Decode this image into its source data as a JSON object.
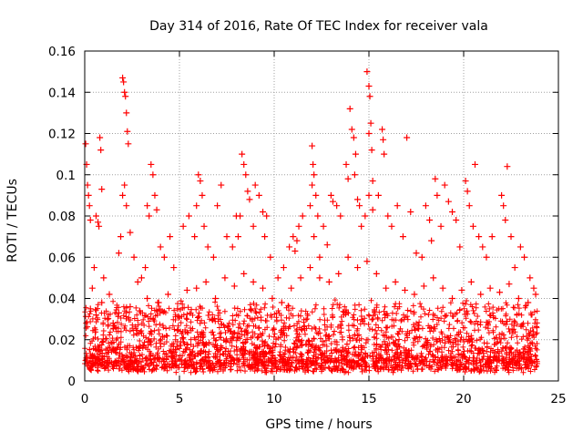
{
  "chart_data": {
    "type": "scatter",
    "title": "Day 314 of 2016, Rate Of TEC Index for receiver vala",
    "xlabel": "GPS time / hours",
    "ylabel": "ROTI / TECUs",
    "xlim": [
      0,
      25
    ],
    "ylim": [
      0,
      0.16
    ],
    "xticks": [
      0,
      5,
      10,
      15,
      20,
      25
    ],
    "yticks": [
      0,
      0.02,
      0.04,
      0.06,
      0.08,
      0.1,
      0.12,
      0.14,
      0.16
    ],
    "xtick_labels": [
      "0",
      "5",
      "10",
      "15",
      "20",
      "25"
    ],
    "ytick_labels": [
      "0",
      "0.02",
      "0.04",
      "0.06",
      "0.08",
      "0.1",
      "0.12",
      "0.14",
      "0.16"
    ],
    "grid": true,
    "marker": "+",
    "series": [
      {
        "name": "ROTI",
        "color": "#ff0000",
        "points": [
          [
            0.05,
            0.115
          ],
          [
            0.1,
            0.105
          ],
          [
            0.15,
            0.095
          ],
          [
            0.2,
            0.09
          ],
          [
            0.25,
            0.085
          ],
          [
            0.3,
            0.078
          ],
          [
            0.6,
            0.08
          ],
          [
            0.7,
            0.077
          ],
          [
            0.75,
            0.075
          ],
          [
            0.8,
            0.118
          ],
          [
            0.85,
            0.112
          ],
          [
            0.9,
            0.093
          ],
          [
            0.5,
            0.055
          ],
          [
            0.4,
            0.045
          ],
          [
            1.0,
            0.05
          ],
          [
            1.3,
            0.042
          ],
          [
            2.0,
            0.147
          ],
          [
            2.05,
            0.145
          ],
          [
            2.1,
            0.14
          ],
          [
            2.15,
            0.138
          ],
          [
            2.2,
            0.13
          ],
          [
            2.25,
            0.121
          ],
          [
            2.3,
            0.115
          ],
          [
            2.1,
            0.095
          ],
          [
            2.0,
            0.09
          ],
          [
            2.2,
            0.085
          ],
          [
            1.9,
            0.07
          ],
          [
            1.8,
            0.062
          ],
          [
            2.4,
            0.072
          ],
          [
            2.6,
            0.06
          ],
          [
            2.8,
            0.048
          ],
          [
            3.3,
            0.085
          ],
          [
            3.4,
            0.08
          ],
          [
            3.5,
            0.105
          ],
          [
            3.6,
            0.1
          ],
          [
            3.7,
            0.09
          ],
          [
            3.8,
            0.083
          ],
          [
            3.2,
            0.055
          ],
          [
            3.0,
            0.05
          ],
          [
            4.0,
            0.065
          ],
          [
            4.2,
            0.06
          ],
          [
            4.5,
            0.07
          ],
          [
            4.7,
            0.055
          ],
          [
            5.2,
            0.075
          ],
          [
            5.5,
            0.08
          ],
          [
            5.8,
            0.07
          ],
          [
            5.9,
            0.085
          ],
          [
            6.0,
            0.1
          ],
          [
            6.1,
            0.097
          ],
          [
            6.3,
            0.075
          ],
          [
            6.5,
            0.065
          ],
          [
            6.8,
            0.06
          ],
          [
            6.2,
            0.09
          ],
          [
            7.2,
            0.095
          ],
          [
            7.0,
            0.085
          ],
          [
            7.5,
            0.07
          ],
          [
            7.8,
            0.065
          ],
          [
            8.0,
            0.08
          ],
          [
            8.3,
            0.11
          ],
          [
            8.4,
            0.105
          ],
          [
            8.5,
            0.1
          ],
          [
            8.6,
            0.092
          ],
          [
            8.7,
            0.088
          ],
          [
            8.9,
            0.075
          ],
          [
            8.2,
            0.08
          ],
          [
            8.1,
            0.07
          ],
          [
            9.0,
            0.095
          ],
          [
            9.2,
            0.09
          ],
          [
            9.4,
            0.082
          ],
          [
            9.6,
            0.08
          ],
          [
            9.5,
            0.07
          ],
          [
            9.8,
            0.06
          ],
          [
            10.2,
            0.05
          ],
          [
            10.5,
            0.055
          ],
          [
            10.8,
            0.065
          ],
          [
            11.0,
            0.07
          ],
          [
            11.2,
            0.068
          ],
          [
            11.1,
            0.063
          ],
          [
            11.5,
            0.08
          ],
          [
            11.3,
            0.075
          ],
          [
            12.0,
            0.114
          ],
          [
            12.05,
            0.105
          ],
          [
            12.1,
            0.1
          ],
          [
            12.0,
            0.095
          ],
          [
            12.2,
            0.09
          ],
          [
            11.9,
            0.085
          ],
          [
            12.3,
            0.08
          ],
          [
            12.1,
            0.07
          ],
          [
            12.4,
            0.06
          ],
          [
            12.6,
            0.075
          ],
          [
            12.8,
            0.066
          ],
          [
            13.0,
            0.09
          ],
          [
            13.1,
            0.087
          ],
          [
            13.3,
            0.085
          ],
          [
            13.5,
            0.08
          ],
          [
            13.8,
            0.105
          ],
          [
            13.9,
            0.098
          ],
          [
            14.0,
            0.132
          ],
          [
            14.1,
            0.122
          ],
          [
            14.2,
            0.118
          ],
          [
            14.3,
            0.11
          ],
          [
            14.25,
            0.1
          ],
          [
            14.4,
            0.088
          ],
          [
            14.5,
            0.085
          ],
          [
            14.6,
            0.075
          ],
          [
            14.9,
            0.15
          ],
          [
            15.0,
            0.143
          ],
          [
            15.05,
            0.138
          ],
          [
            15.1,
            0.125
          ],
          [
            15.0,
            0.12
          ],
          [
            15.15,
            0.112
          ],
          [
            15.2,
            0.097
          ],
          [
            15.0,
            0.09
          ],
          [
            15.2,
            0.083
          ],
          [
            14.8,
            0.08
          ],
          [
            15.5,
            0.09
          ],
          [
            15.7,
            0.122
          ],
          [
            15.75,
            0.117
          ],
          [
            15.8,
            0.11
          ],
          [
            16.0,
            0.08
          ],
          [
            16.2,
            0.075
          ],
          [
            16.5,
            0.085
          ],
          [
            16.8,
            0.07
          ],
          [
            17.0,
            0.118
          ],
          [
            17.2,
            0.082
          ],
          [
            17.5,
            0.062
          ],
          [
            17.8,
            0.06
          ],
          [
            18.0,
            0.085
          ],
          [
            18.2,
            0.078
          ],
          [
            18.3,
            0.068
          ],
          [
            18.5,
            0.098
          ],
          [
            18.6,
            0.09
          ],
          [
            18.8,
            0.075
          ],
          [
            19.0,
            0.095
          ],
          [
            19.2,
            0.087
          ],
          [
            19.4,
            0.082
          ],
          [
            19.6,
            0.078
          ],
          [
            19.8,
            0.065
          ],
          [
            20.1,
            0.097
          ],
          [
            20.2,
            0.092
          ],
          [
            20.3,
            0.085
          ],
          [
            20.5,
            0.075
          ],
          [
            20.6,
            0.105
          ],
          [
            20.8,
            0.07
          ],
          [
            21.0,
            0.065
          ],
          [
            21.2,
            0.06
          ],
          [
            21.5,
            0.07
          ],
          [
            22.0,
            0.09
          ],
          [
            22.1,
            0.085
          ],
          [
            22.3,
            0.104
          ],
          [
            22.2,
            0.078
          ],
          [
            22.5,
            0.07
          ],
          [
            22.7,
            0.055
          ],
          [
            23.0,
            0.065
          ],
          [
            23.2,
            0.06
          ],
          [
            23.5,
            0.05
          ],
          [
            23.7,
            0.045
          ],
          [
            0.3,
            0.035
          ],
          [
            0.6,
            0.032
          ],
          [
            0.9,
            0.038
          ],
          [
            1.2,
            0.03
          ],
          [
            1.5,
            0.028
          ],
          [
            1.8,
            0.033
          ],
          [
            2.4,
            0.036
          ],
          [
            2.9,
            0.034
          ],
          [
            3.3,
            0.04
          ],
          [
            3.9,
            0.038
          ],
          [
            4.4,
            0.042
          ],
          [
            4.9,
            0.035
          ],
          [
            5.4,
            0.044
          ],
          [
            5.9,
            0.045
          ],
          [
            6.4,
            0.048
          ],
          [
            6.9,
            0.04
          ],
          [
            7.4,
            0.05
          ],
          [
            7.9,
            0.046
          ],
          [
            8.4,
            0.052
          ],
          [
            8.9,
            0.048
          ],
          [
            9.4,
            0.045
          ],
          [
            9.9,
            0.04
          ],
          [
            10.4,
            0.038
          ],
          [
            10.9,
            0.045
          ],
          [
            11.4,
            0.05
          ],
          [
            11.9,
            0.055
          ],
          [
            12.4,
            0.05
          ],
          [
            12.9,
            0.048
          ],
          [
            13.4,
            0.052
          ],
          [
            13.9,
            0.06
          ],
          [
            14.4,
            0.055
          ],
          [
            14.9,
            0.058
          ],
          [
            15.4,
            0.052
          ],
          [
            15.9,
            0.045
          ],
          [
            16.4,
            0.048
          ],
          [
            16.9,
            0.044
          ],
          [
            17.4,
            0.042
          ],
          [
            17.9,
            0.046
          ],
          [
            18.4,
            0.05
          ],
          [
            18.9,
            0.045
          ],
          [
            19.4,
            0.04
          ],
          [
            19.9,
            0.044
          ],
          [
            20.4,
            0.048
          ],
          [
            20.9,
            0.042
          ],
          [
            21.4,
            0.045
          ],
          [
            21.9,
            0.043
          ],
          [
            22.4,
            0.047
          ],
          [
            22.9,
            0.04
          ],
          [
            23.4,
            0.038
          ],
          [
            23.8,
            0.042
          ]
        ]
      }
    ]
  }
}
